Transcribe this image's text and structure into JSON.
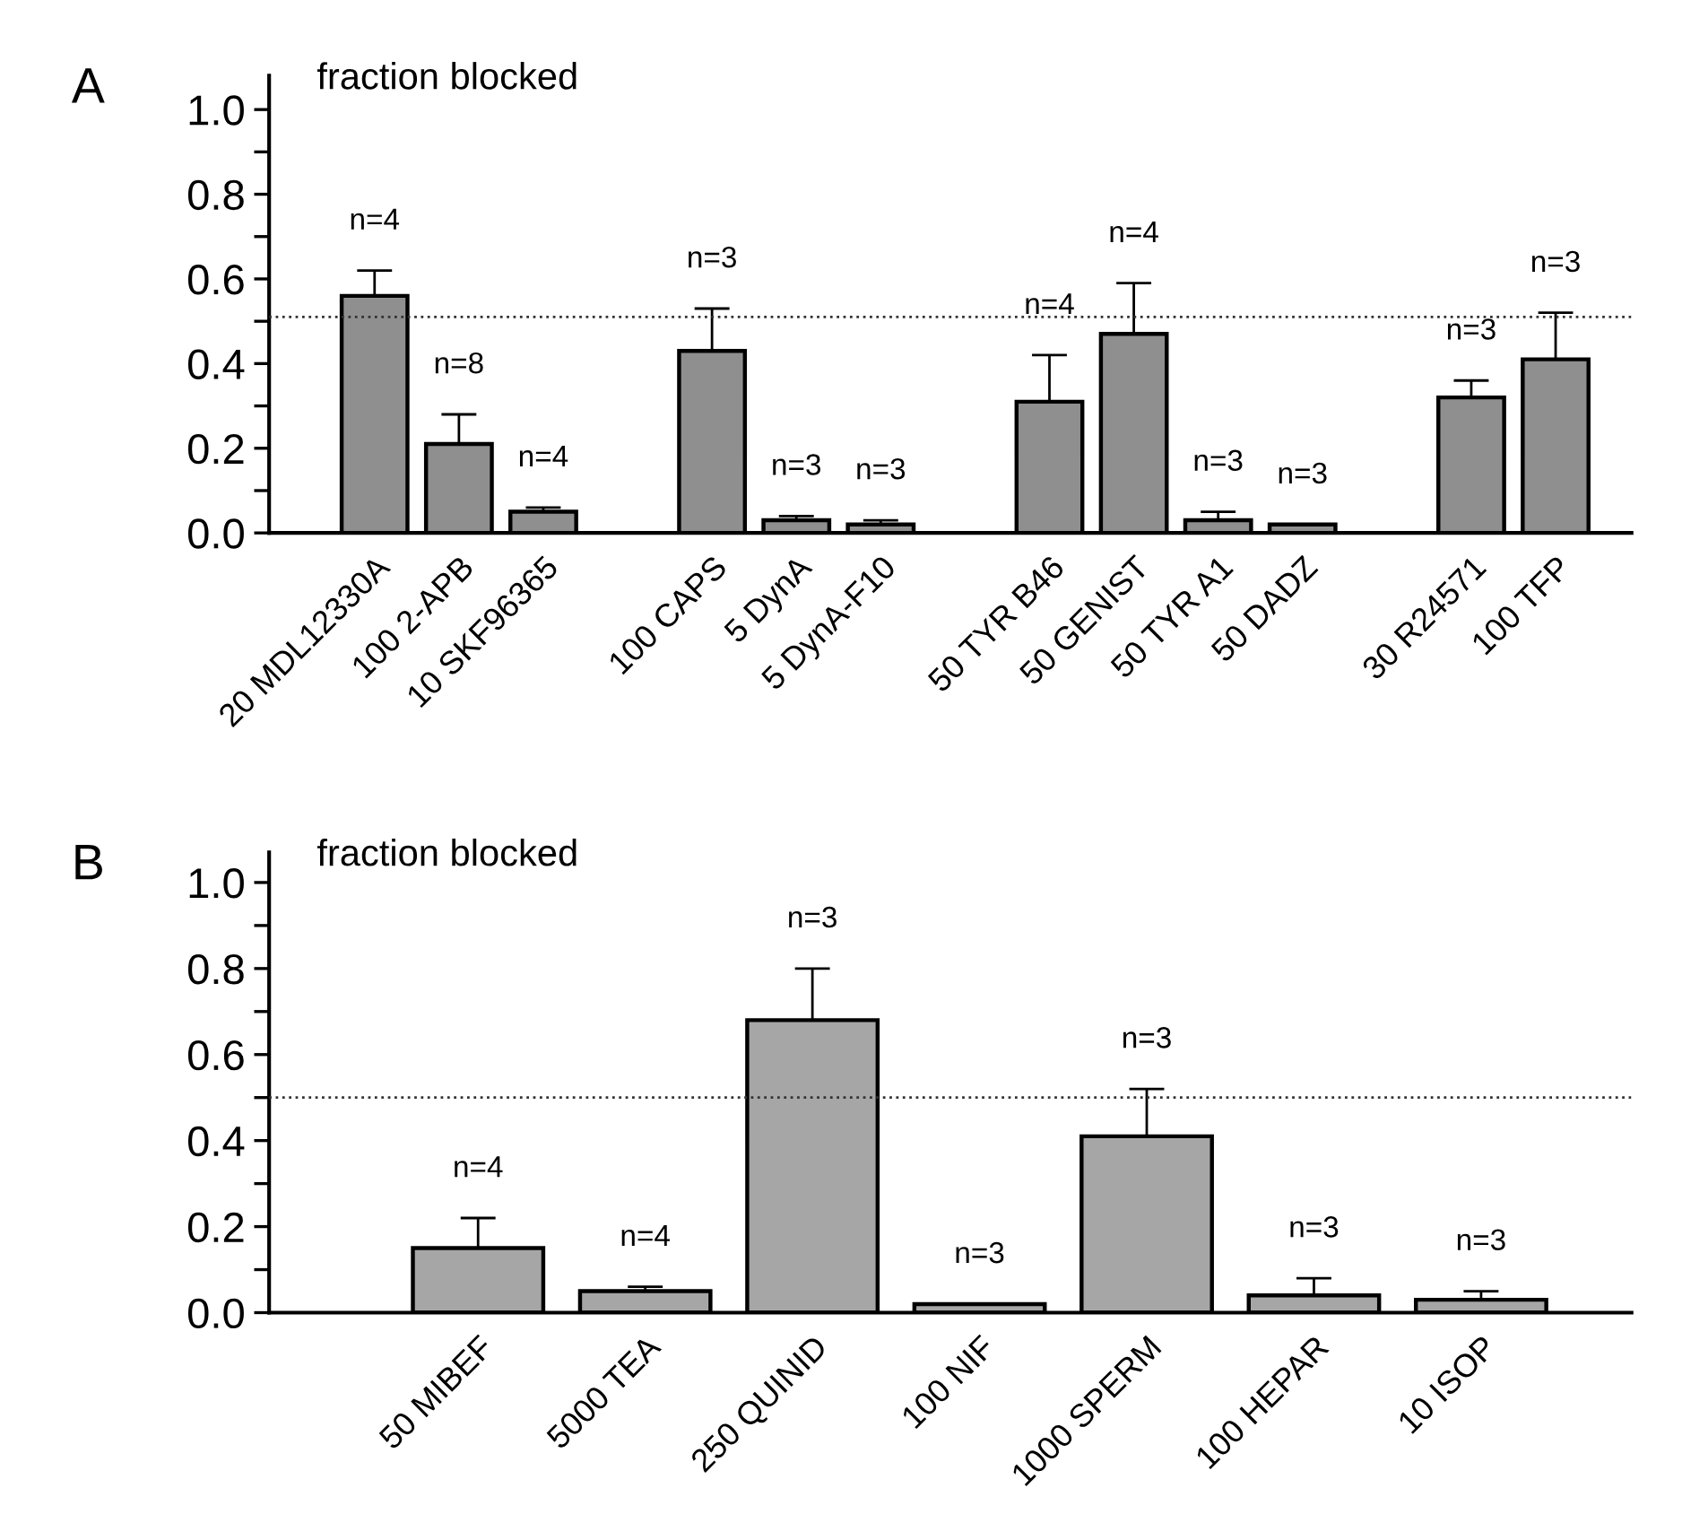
{
  "chart_data": [
    {
      "type": "bar",
      "title": "A",
      "ylabel": "fraction blocked",
      "categories": [
        "20 MDL12330A",
        "100 2-APB",
        "10 SKF96365",
        null,
        "100 CAPS",
        "5 DynA",
        "5 DynA-F10",
        null,
        "50 TYR B46",
        "50 GENIST",
        "50 TYR A1",
        "50 DADZ",
        null,
        "30 R24571",
        "100 TFP"
      ],
      "values": [
        0.56,
        0.21,
        0.05,
        null,
        0.43,
        0.03,
        0.02,
        null,
        0.31,
        0.47,
        0.03,
        0.02,
        null,
        0.32,
        0.41
      ],
      "errors": [
        [
          0.56,
          0.62
        ],
        [
          0.21,
          0.28
        ],
        [
          0.05,
          0.06
        ],
        null,
        [
          0.43,
          0.53
        ],
        [
          0.03,
          0.04
        ],
        [
          0.02,
          0.03
        ],
        null,
        [
          0.31,
          0.42
        ],
        [
          0.47,
          0.59
        ],
        [
          0.03,
          0.05
        ],
        null,
        null,
        [
          0.32,
          0.36
        ],
        [
          0.41,
          0.52
        ]
      ],
      "annotations": [
        "n=4",
        "n=8",
        "n=4",
        "n=3",
        "n=3",
        "n=3",
        "n=4",
        "n=4",
        "n=3",
        "n=3",
        "n=3",
        "n=3"
      ],
      "color": "#8f8f8f",
      "ylim": [
        0,
        1.08
      ],
      "yticks": [
        {
          "value": 0,
          "label": "0.0"
        },
        {
          "value": 0.1,
          "label": null
        },
        0.2,
        {
          "value": 0.3,
          "label": null
        },
        0.4,
        {
          "value": 0.5,
          "label": null
        },
        0.6,
        {
          "value": 0.7,
          "label": null
        },
        0.8,
        {
          "value": 0.9,
          "label": null
        },
        {
          "value": 1,
          "label": "1.0"
        }
      ],
      "ref_lines": [
        {
          "axis": "y",
          "value": 0.51,
          "line_style": "dotted",
          "color": "#333333"
        }
      ],
      "grid": false,
      "legend": false
    },
    {
      "type": "bar",
      "title": "B",
      "ylabel": "fraction blocked",
      "categories": [
        "50 MIBEF",
        "5000 TEA",
        "250 QUINID",
        "100 NIF",
        "1000 SPERM",
        "100 HEPAR",
        "10 ISOP"
      ],
      "values": [
        0.15,
        0.05,
        0.68,
        0.02,
        0.41,
        0.04,
        0.03
      ],
      "errors": [
        [
          0.15,
          0.22
        ],
        [
          0.05,
          0.06
        ],
        [
          0.68,
          0.8
        ],
        null,
        [
          0.41,
          0.52
        ],
        [
          0.04,
          0.08
        ],
        [
          0.03,
          0.05
        ]
      ],
      "annotations": [
        "n=4",
        "n=4",
        "n=3",
        "n=3",
        "n=3",
        "n=3",
        "n=3"
      ],
      "color": "#a6a6a6",
      "ylim": [
        0,
        1.07
      ],
      "yticks": [
        {
          "value": 0,
          "label": "0.0"
        },
        {
          "value": 0.1,
          "label": null
        },
        0.2,
        {
          "value": 0.3,
          "label": null
        },
        0.4,
        {
          "value": 0.5,
          "label": null
        },
        0.6,
        {
          "value": 0.7,
          "label": null
        },
        0.8,
        {
          "value": 0.9,
          "label": null
        },
        {
          "value": 1,
          "label": "1.0"
        }
      ],
      "ref_lines": [
        {
          "axis": "y",
          "value": 0.5,
          "line_style": "dotted",
          "color": "#333333"
        }
      ],
      "grid": false,
      "legend": false
    }
  ]
}
